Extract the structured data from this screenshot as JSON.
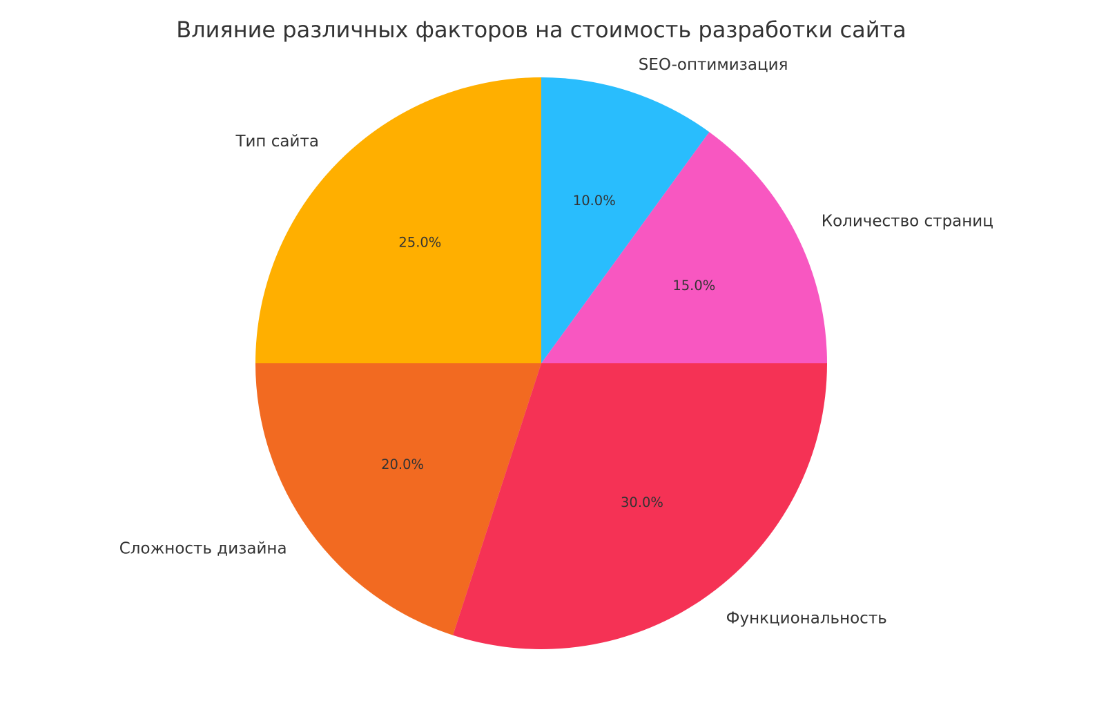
{
  "chart_data": {
    "type": "pie",
    "title": "Влияние различных факторов на стоимость разработки сайта",
    "start_angle_deg": 90,
    "direction": "counterclockwise",
    "slices": [
      {
        "label": "Тип сайта",
        "value": 25,
        "pct_label": "25.0%",
        "color": "#FFAF00"
      },
      {
        "label": "Сложность дизайна",
        "value": 20,
        "pct_label": "20.0%",
        "color": "#F26A21"
      },
      {
        "label": "Функциональность",
        "value": 30,
        "pct_label": "30.0%",
        "color": "#F53255"
      },
      {
        "label": "Количество страниц",
        "value": 15,
        "pct_label": "15.0%",
        "color": "#F857C1"
      },
      {
        "label": "SEO-оптимизация",
        "value": 10,
        "pct_label": "10.0%",
        "color": "#29BDFD"
      }
    ]
  }
}
